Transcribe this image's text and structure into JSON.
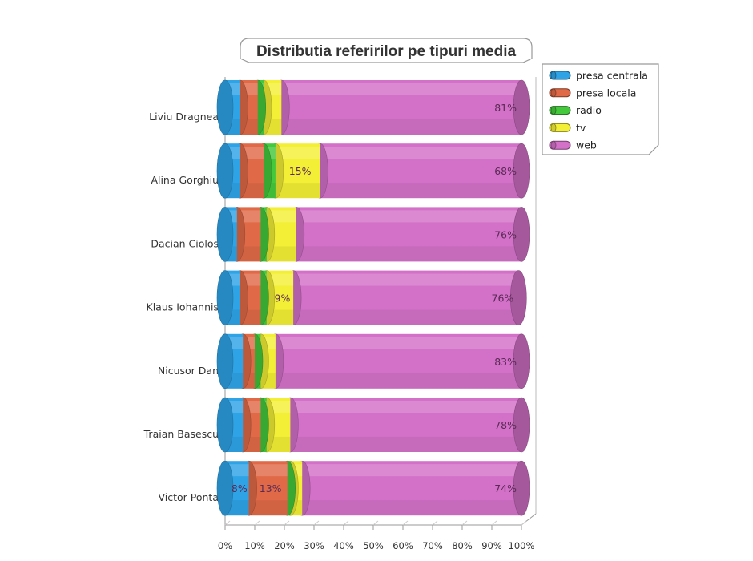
{
  "chart_data": {
    "type": "bar",
    "orientation": "horizontal",
    "stacked": true,
    "percent_stacked": true,
    "style": "3d-cylinder",
    "title": "Distributia referirilor pe tipuri media",
    "categories": [
      "Liviu Dragnea",
      "Alina Gorghiu",
      "Dacian Ciolos",
      "Klaus Iohannis",
      "Nicusor Dan",
      "Traian Basescu",
      "Victor Ponta"
    ],
    "series": [
      {
        "name": "presa centrala",
        "color": "#2ea3e6",
        "values": [
          5,
          5,
          4,
          5,
          6,
          6,
          8
        ]
      },
      {
        "name": "presa locala",
        "color": "#e06a47",
        "values": [
          6,
          8,
          8,
          7,
          4,
          6,
          13
        ]
      },
      {
        "name": "radio",
        "color": "#44c83c",
        "values": [
          2,
          4,
          2,
          2,
          2,
          2,
          1
        ]
      },
      {
        "name": "tv",
        "color": "#f3ef36",
        "values": [
          6,
          15,
          10,
          9,
          5,
          8,
          4
        ]
      },
      {
        "name": "web",
        "color": "#d371c8",
        "values": [
          81,
          68,
          76,
          76,
          83,
          78,
          74
        ]
      }
    ],
    "data_labels": [
      {
        "category": "Liviu Dragnea",
        "series": "web",
        "text": "81%"
      },
      {
        "category": "Alina Gorghiu",
        "series": "tv",
        "text": "15%"
      },
      {
        "category": "Alina Gorghiu",
        "series": "web",
        "text": "68%"
      },
      {
        "category": "Dacian Ciolos",
        "series": "web",
        "text": "76%"
      },
      {
        "category": "Klaus Iohannis",
        "series": "tv",
        "text": "9%"
      },
      {
        "category": "Klaus Iohannis",
        "series": "web",
        "text": "76%"
      },
      {
        "category": "Nicusor Dan",
        "series": "web",
        "text": "83%"
      },
      {
        "category": "Traian Basescu",
        "series": "web",
        "text": "78%"
      },
      {
        "category": "Victor Ponta",
        "series": "presa centrala",
        "text": "8%"
      },
      {
        "category": "Victor Ponta",
        "series": "presa locala",
        "text": "13%"
      },
      {
        "category": "Victor Ponta",
        "series": "web",
        "text": "74%"
      }
    ],
    "x_ticks": [
      "0%",
      "10%",
      "20%",
      "30%",
      "40%",
      "50%",
      "60%",
      "70%",
      "80%",
      "90%",
      "100%"
    ],
    "xlim": [
      0,
      100
    ],
    "grid": false,
    "legend_position": "top-right"
  }
}
